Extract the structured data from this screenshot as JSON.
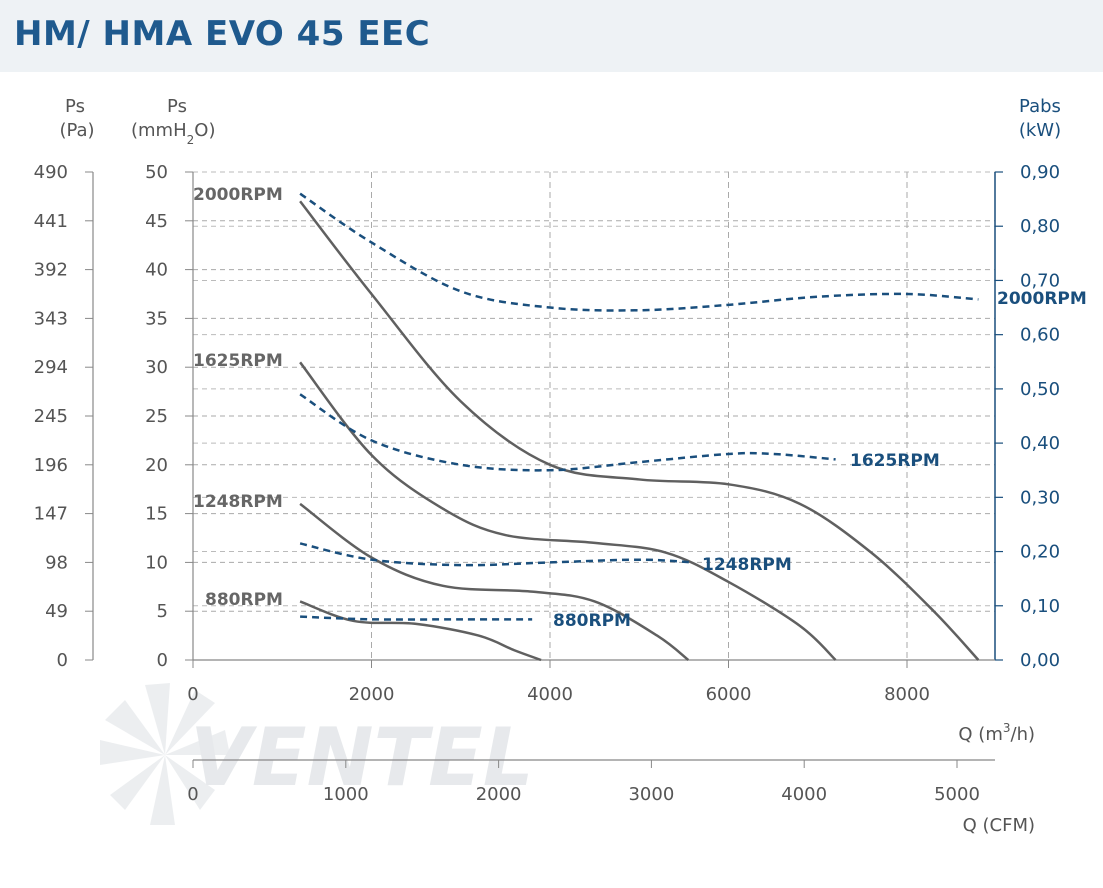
{
  "header": {
    "title": "HM/ HMA EVO 45 EEC"
  },
  "watermark": {
    "brand": "VENTEL"
  },
  "colors": {
    "header_bg": "#eef2f5",
    "title": "#1f5a8e",
    "ps_curve": "#606060",
    "power_curve": "#1a4f7d",
    "grid": "#aaaaaa"
  },
  "chart_data": {
    "type": "line",
    "axes": {
      "left_pa": {
        "label_line1": "Ps",
        "label_line2": "(Pa)",
        "ticks": [
          "490",
          "441",
          "392",
          "343",
          "294",
          "245",
          "196",
          "147",
          "98",
          "49",
          "0"
        ]
      },
      "left_mmh2o": {
        "label_line1": "Ps",
        "label_line2_a": "(mmH",
        "label_line2_sub": "2",
        "label_line2_b": "O)",
        "ticks": [
          "50",
          "45",
          "40",
          "35",
          "30",
          "25",
          "20",
          "15",
          "10",
          "5",
          "0"
        ],
        "range": [
          0,
          50
        ]
      },
      "right_kw": {
        "label_line1": "Pabs",
        "label_line2": "(kW)",
        "ticks": [
          "0,90",
          "0,80",
          "0,70",
          "0,60",
          "0,50",
          "0,40",
          "0,30",
          "0,20",
          "0,10",
          "0,00"
        ],
        "range": [
          0,
          0.9
        ]
      },
      "x_m3h": {
        "label_a": "Q (m",
        "label_sup": "3",
        "label_b": "/h)",
        "ticks": [
          "0",
          "2000",
          "4000",
          "6000",
          "8000"
        ],
        "range": [
          0,
          9000
        ]
      },
      "x_cfm": {
        "label": "Q (CFM)",
        "ticks": [
          "0",
          "1000",
          "2000",
          "3000",
          "4000",
          "5000"
        ],
        "range": [
          0,
          5300
        ]
      }
    },
    "pressure_series": [
      {
        "name": "2000RPM",
        "points": [
          [
            1200,
            47
          ],
          [
            2000,
            37.5
          ],
          [
            3000,
            26.5
          ],
          [
            4000,
            20
          ],
          [
            5000,
            18.5
          ],
          [
            6000,
            18
          ],
          [
            6800,
            16
          ],
          [
            7600,
            11
          ],
          [
            8300,
            5
          ],
          [
            8800,
            0
          ]
        ]
      },
      {
        "name": "1625RPM",
        "points": [
          [
            1200,
            30.5
          ],
          [
            2000,
            21
          ],
          [
            2800,
            15.5
          ],
          [
            3500,
            12.8
          ],
          [
            4500,
            12
          ],
          [
            5300,
            11
          ],
          [
            6000,
            8
          ],
          [
            6800,
            3.5
          ],
          [
            7200,
            0
          ]
        ]
      },
      {
        "name": "1248RPM",
        "points": [
          [
            1200,
            16
          ],
          [
            2000,
            10.5
          ],
          [
            2800,
            7.6
          ],
          [
            3800,
            7
          ],
          [
            4500,
            6
          ],
          [
            5200,
            2.5
          ],
          [
            5550,
            0
          ]
        ]
      },
      {
        "name": "880RPM",
        "points": [
          [
            1200,
            6
          ],
          [
            1800,
            4
          ],
          [
            2500,
            3.7
          ],
          [
            3200,
            2.5
          ],
          [
            3600,
            1
          ],
          [
            3900,
            0
          ]
        ]
      }
    ],
    "power_series": [
      {
        "name": "2000RPM",
        "points": [
          [
            1200,
            0.86
          ],
          [
            2000,
            0.77
          ],
          [
            3000,
            0.68
          ],
          [
            4000,
            0.65
          ],
          [
            5000,
            0.645
          ],
          [
            6000,
            0.655
          ],
          [
            7000,
            0.67
          ],
          [
            8000,
            0.675
          ],
          [
            8800,
            0.665
          ]
        ]
      },
      {
        "name": "1625RPM",
        "points": [
          [
            1200,
            0.49
          ],
          [
            2000,
            0.405
          ],
          [
            3000,
            0.36
          ],
          [
            4000,
            0.35
          ],
          [
            5000,
            0.365
          ],
          [
            6000,
            0.38
          ],
          [
            6500,
            0.38
          ],
          [
            7200,
            0.37
          ]
        ]
      },
      {
        "name": "1248RPM",
        "points": [
          [
            1200,
            0.215
          ],
          [
            2000,
            0.185
          ],
          [
            3000,
            0.175
          ],
          [
            4000,
            0.18
          ],
          [
            5000,
            0.185
          ],
          [
            5600,
            0.18
          ]
        ]
      },
      {
        "name": "880RPM",
        "points": [
          [
            1200,
            0.08
          ],
          [
            2000,
            0.075
          ],
          [
            3000,
            0.075
          ],
          [
            3800,
            0.075
          ]
        ]
      }
    ]
  }
}
